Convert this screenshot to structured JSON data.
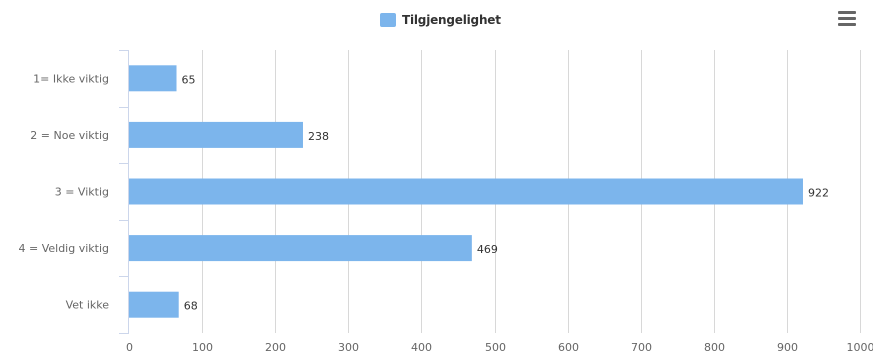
{
  "chart_data": {
    "type": "bar",
    "orientation": "horizontal",
    "categories": [
      "1= Ikke viktig",
      "2 = Noe viktig",
      "3 = Viktig",
      "4 = Veldig viktig",
      "Vet ikke"
    ],
    "series": [
      {
        "name": "Tilgjengelighet",
        "values": [
          65,
          238,
          922,
          469,
          68
        ],
        "color": "#7cb5ec"
      }
    ],
    "xlim": [
      0,
      1000
    ],
    "ticks": [
      0,
      100,
      200,
      300,
      400,
      500,
      600,
      700,
      800,
      900,
      1000
    ],
    "grid": true,
    "legend": "top-center",
    "data_labels": true
  },
  "menu": {
    "icon": "hamburger-menu-icon"
  }
}
